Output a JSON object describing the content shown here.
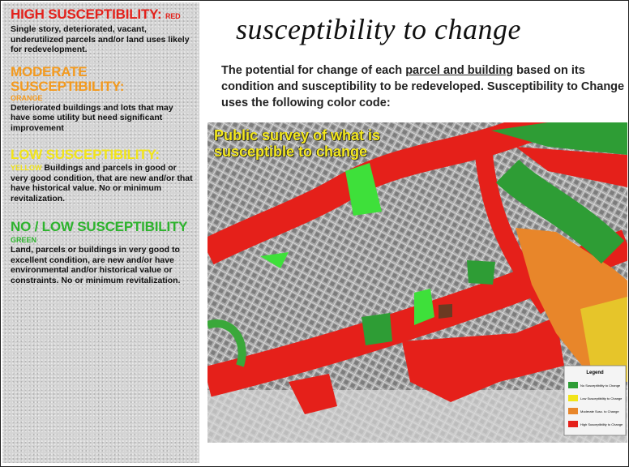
{
  "left_panel": {
    "sections": [
      {
        "heading": "HIGH SUSCEPTIBILITY:",
        "color_name": "RED",
        "text": "Single story, deteriorated, vacant, underutilized parcels and/or land uses likely for redevelopment."
      },
      {
        "heading": "MODERATE SUSCEPTIBILITY:",
        "color_name": "ORANGE",
        "text": "Deteriorated buildings and lots that may have some utility but need significant improvement"
      },
      {
        "heading": "LOW SUSCEPTIBILITY:",
        "color_name": "YELLOW",
        "text": "Buildings and parcels in good or very good condition, that are new and/or that have historical value. No or minimum revitalization."
      },
      {
        "heading": "NO / LOW SUSCEPTIBILITY",
        "color_name": "GREEN",
        "text": "Land, parcels or buildings in very good to excellent condition, are new and/or have environmental and/or historical value or constraints. No or minimum revitalization."
      }
    ]
  },
  "header": {
    "title": "susceptibility to change",
    "intro_before": "The potential for change of each",
    "intro_link": "parcel and building",
    "intro_after": "based on its condition and susceptibility to be redeveloped. Susceptibility to Change uses the following color code:"
  },
  "map": {
    "caption": "Public survey of what is susceptible to change",
    "legend": {
      "title": "Legend",
      "items": [
        "No Susceptibility to Change",
        "Low Susceptibility to Change",
        "Moderate Susc. to Change",
        "High Susceptibility to Change"
      ]
    }
  }
}
